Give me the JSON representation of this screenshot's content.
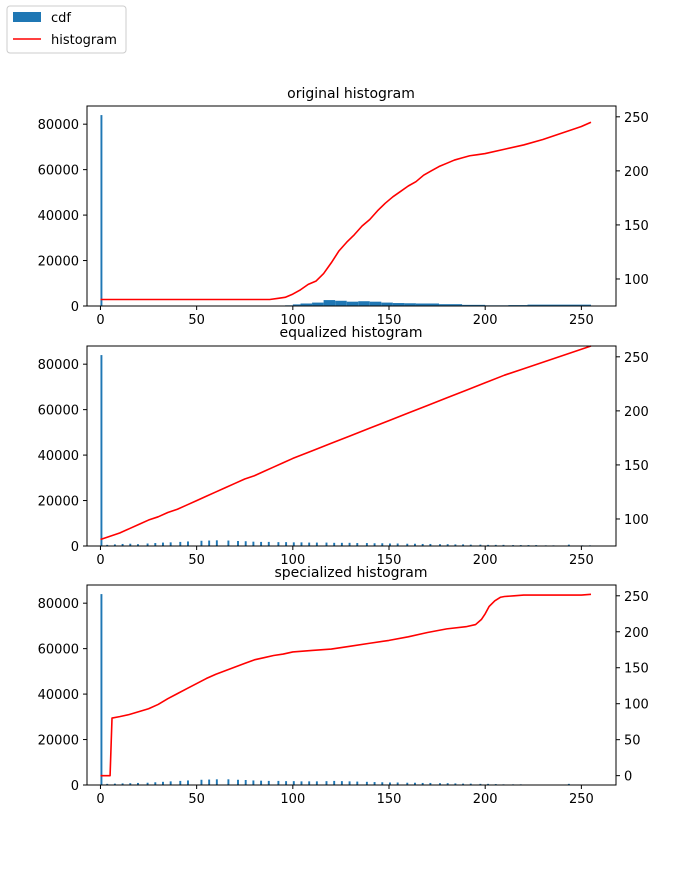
{
  "figure": {
    "legend": {
      "entries": [
        {
          "label": "cdf",
          "kind": "patch",
          "color": "#1f77b4"
        },
        {
          "label": "histogram",
          "kind": "line",
          "color": "#ff0000"
        }
      ],
      "placement": "upper-left-of-figure"
    }
  },
  "chart_data": [
    {
      "type": "bar",
      "title": "original histogram",
      "xlabel": "",
      "ylabel": "",
      "y2label": "",
      "xlim": [
        -7,
        268
      ],
      "xticks": [
        0,
        50,
        100,
        150,
        200,
        250
      ],
      "ylim": [
        0,
        88000
      ],
      "yticks": [
        0,
        20000,
        40000,
        60000,
        80000
      ],
      "y2lim": [
        75,
        260
      ],
      "y2ticks": [
        100,
        150,
        200,
        250
      ],
      "grid": false,
      "bar_color": "#1f77b4",
      "line_color": "#ff0000",
      "bars": [
        {
          "x0": 0,
          "x1": 1,
          "value": 84000
        },
        {
          "x0": 96,
          "x1": 100,
          "value": 300
        },
        {
          "x0": 100,
          "x1": 104,
          "value": 700
        },
        {
          "x0": 104,
          "x1": 110,
          "value": 1100
        },
        {
          "x0": 110,
          "x1": 116,
          "value": 1500
        },
        {
          "x0": 116,
          "x1": 122,
          "value": 2600
        },
        {
          "x0": 122,
          "x1": 128,
          "value": 2300
        },
        {
          "x0": 128,
          "x1": 134,
          "value": 1900
        },
        {
          "x0": 134,
          "x1": 140,
          "value": 2100
        },
        {
          "x0": 140,
          "x1": 146,
          "value": 1900
        },
        {
          "x0": 146,
          "x1": 152,
          "value": 1500
        },
        {
          "x0": 152,
          "x1": 158,
          "value": 1300
        },
        {
          "x0": 158,
          "x1": 164,
          "value": 1200
        },
        {
          "x0": 164,
          "x1": 176,
          "value": 1100
        },
        {
          "x0": 176,
          "x1": 188,
          "value": 800
        },
        {
          "x0": 188,
          "x1": 200,
          "value": 500
        },
        {
          "x0": 200,
          "x1": 212,
          "value": 300
        },
        {
          "x0": 212,
          "x1": 222,
          "value": 400
        },
        {
          "x0": 222,
          "x1": 255,
          "value": 600
        }
      ],
      "line": {
        "x": [
          0,
          88,
          92,
          96,
          100,
          104,
          108,
          112,
          116,
          120,
          124,
          128,
          132,
          136,
          140,
          144,
          148,
          152,
          156,
          160,
          164,
          168,
          172,
          176,
          180,
          184,
          188,
          192,
          196,
          200,
          210,
          220,
          230,
          240,
          250,
          255
        ],
        "y": [
          81,
          81,
          82,
          83,
          86,
          90,
          95,
          98,
          105,
          115,
          126,
          134,
          141,
          149,
          155,
          163,
          170,
          176,
          181,
          186,
          190,
          196,
          200,
          204,
          207,
          210,
          212,
          214,
          215,
          216,
          220,
          224,
          229,
          235,
          241,
          245
        ]
      }
    },
    {
      "type": "bar",
      "title": "equalized histogram",
      "xlabel": "",
      "ylabel": "",
      "y2label": "",
      "xlim": [
        -7,
        268
      ],
      "xticks": [
        0,
        50,
        100,
        150,
        200,
        250
      ],
      "ylim": [
        0,
        88000
      ],
      "yticks": [
        0,
        20000,
        40000,
        60000,
        80000
      ],
      "y2lim": [
        75,
        260
      ],
      "y2ticks": [
        100,
        150,
        200,
        250
      ],
      "grid": false,
      "bar_color": "#1f77b4",
      "line_color": "#ff0000",
      "bars": [
        {
          "x0": 0,
          "x1": 1,
          "value": 84000
        },
        {
          "x0": 3,
          "x1": 4,
          "value": 500
        },
        {
          "x0": 7,
          "x1": 8,
          "value": 700
        },
        {
          "x0": 11,
          "x1": 12,
          "value": 900
        },
        {
          "x0": 15,
          "x1": 16,
          "value": 1000
        },
        {
          "x0": 19,
          "x1": 20,
          "value": 800
        },
        {
          "x0": 24,
          "x1": 25,
          "value": 1100
        },
        {
          "x0": 28,
          "x1": 29,
          "value": 1300
        },
        {
          "x0": 32,
          "x1": 33,
          "value": 1500
        },
        {
          "x0": 36,
          "x1": 37,
          "value": 1600
        },
        {
          "x0": 41,
          "x1": 42,
          "value": 1800
        },
        {
          "x0": 45,
          "x1": 46,
          "value": 2000
        },
        {
          "x0": 52,
          "x1": 53,
          "value": 2300
        },
        {
          "x0": 56,
          "x1": 57,
          "value": 2400
        },
        {
          "x0": 60,
          "x1": 61,
          "value": 2500
        },
        {
          "x0": 66,
          "x1": 67,
          "value": 2400
        },
        {
          "x0": 71,
          "x1": 72,
          "value": 2200
        },
        {
          "x0": 75,
          "x1": 76,
          "value": 2100
        },
        {
          "x0": 79,
          "x1": 80,
          "value": 1900
        },
        {
          "x0": 83,
          "x1": 84,
          "value": 1800
        },
        {
          "x0": 87,
          "x1": 88,
          "value": 1800
        },
        {
          "x0": 92,
          "x1": 93,
          "value": 1700
        },
        {
          "x0": 96,
          "x1": 97,
          "value": 1700
        },
        {
          "x0": 100,
          "x1": 101,
          "value": 1600
        },
        {
          "x0": 104,
          "x1": 105,
          "value": 1600
        },
        {
          "x0": 108,
          "x1": 109,
          "value": 1500
        },
        {
          "x0": 112,
          "x1": 113,
          "value": 1500
        },
        {
          "x0": 117,
          "x1": 118,
          "value": 1500
        },
        {
          "x0": 121,
          "x1": 122,
          "value": 1400
        },
        {
          "x0": 125,
          "x1": 126,
          "value": 1400
        },
        {
          "x0": 129,
          "x1": 130,
          "value": 1400
        },
        {
          "x0": 133,
          "x1": 134,
          "value": 1300
        },
        {
          "x0": 138,
          "x1": 139,
          "value": 1300
        },
        {
          "x0": 142,
          "x1": 143,
          "value": 1200
        },
        {
          "x0": 146,
          "x1": 147,
          "value": 1200
        },
        {
          "x0": 150,
          "x1": 151,
          "value": 1100
        },
        {
          "x0": 154,
          "x1": 155,
          "value": 1100
        },
        {
          "x0": 159,
          "x1": 160,
          "value": 1000
        },
        {
          "x0": 163,
          "x1": 164,
          "value": 1000
        },
        {
          "x0": 167,
          "x1": 168,
          "value": 900
        },
        {
          "x0": 171,
          "x1": 172,
          "value": 900
        },
        {
          "x0": 176,
          "x1": 177,
          "value": 800
        },
        {
          "x0": 180,
          "x1": 181,
          "value": 800
        },
        {
          "x0": 184,
          "x1": 185,
          "value": 700
        },
        {
          "x0": 188,
          "x1": 189,
          "value": 700
        },
        {
          "x0": 192,
          "x1": 193,
          "value": 600
        },
        {
          "x0": 197,
          "x1": 198,
          "value": 600
        },
        {
          "x0": 201,
          "x1": 202,
          "value": 500
        },
        {
          "x0": 205,
          "x1": 206,
          "value": 500
        },
        {
          "x0": 209,
          "x1": 210,
          "value": 500
        },
        {
          "x0": 214,
          "x1": 215,
          "value": 400
        },
        {
          "x0": 218,
          "x1": 219,
          "value": 400
        },
        {
          "x0": 222,
          "x1": 223,
          "value": 400
        },
        {
          "x0": 226,
          "x1": 227,
          "value": 400
        },
        {
          "x0": 231,
          "x1": 232,
          "value": 300
        },
        {
          "x0": 235,
          "x1": 236,
          "value": 300
        },
        {
          "x0": 243,
          "x1": 244,
          "value": 600
        },
        {
          "x0": 250,
          "x1": 251,
          "value": 300
        },
        {
          "x0": 254,
          "x1": 255,
          "value": 300
        }
      ],
      "line": {
        "x": [
          0,
          5,
          10,
          15,
          20,
          25,
          30,
          35,
          40,
          45,
          50,
          55,
          60,
          65,
          70,
          75,
          80,
          85,
          90,
          95,
          100,
          110,
          120,
          130,
          140,
          150,
          160,
          170,
          180,
          190,
          200,
          210,
          220,
          230,
          240,
          250,
          255
        ],
        "y": [
          81,
          84,
          87,
          91,
          95,
          99,
          102,
          106,
          109,
          113,
          117,
          121,
          125,
          129,
          133,
          137,
          140,
          144,
          148,
          152,
          156,
          163,
          170,
          177,
          184,
          191,
          198,
          205,
          212,
          219,
          226,
          233,
          239,
          245,
          251,
          257,
          260
        ]
      }
    },
    {
      "type": "bar",
      "title": "specialized histogram",
      "xlabel": "",
      "ylabel": "",
      "y2label": "",
      "xlim": [
        -7,
        268
      ],
      "xticks": [
        0,
        50,
        100,
        150,
        200,
        250
      ],
      "ylim": [
        0,
        88000
      ],
      "yticks": [
        0,
        20000,
        40000,
        60000,
        80000
      ],
      "y2lim": [
        -13,
        265
      ],
      "y2ticks": [
        0,
        50,
        100,
        150,
        200,
        250
      ],
      "grid": false,
      "bar_color": "#1f77b4",
      "line_color": "#ff0000",
      "bars": [
        {
          "x0": 0,
          "x1": 1,
          "value": 84000
        },
        {
          "x0": 3,
          "x1": 4,
          "value": 500
        },
        {
          "x0": 7,
          "x1": 8,
          "value": 600
        },
        {
          "x0": 11,
          "x1": 12,
          "value": 700
        },
        {
          "x0": 15,
          "x1": 16,
          "value": 800
        },
        {
          "x0": 19,
          "x1": 20,
          "value": 900
        },
        {
          "x0": 24,
          "x1": 25,
          "value": 1000
        },
        {
          "x0": 28,
          "x1": 29,
          "value": 1200
        },
        {
          "x0": 32,
          "x1": 33,
          "value": 1400
        },
        {
          "x0": 36,
          "x1": 37,
          "value": 1600
        },
        {
          "x0": 41,
          "x1": 42,
          "value": 1800
        },
        {
          "x0": 45,
          "x1": 46,
          "value": 2000
        },
        {
          "x0": 52,
          "x1": 53,
          "value": 2300
        },
        {
          "x0": 56,
          "x1": 57,
          "value": 2400
        },
        {
          "x0": 60,
          "x1": 61,
          "value": 2500
        },
        {
          "x0": 66,
          "x1": 67,
          "value": 2500
        },
        {
          "x0": 71,
          "x1": 72,
          "value": 2300
        },
        {
          "x0": 75,
          "x1": 76,
          "value": 2200
        },
        {
          "x0": 79,
          "x1": 80,
          "value": 2000
        },
        {
          "x0": 83,
          "x1": 84,
          "value": 1900
        },
        {
          "x0": 87,
          "x1": 88,
          "value": 1800
        },
        {
          "x0": 92,
          "x1": 93,
          "value": 1800
        },
        {
          "x0": 96,
          "x1": 97,
          "value": 1700
        },
        {
          "x0": 100,
          "x1": 101,
          "value": 1700
        },
        {
          "x0": 104,
          "x1": 105,
          "value": 1600
        },
        {
          "x0": 108,
          "x1": 109,
          "value": 1600
        },
        {
          "x0": 112,
          "x1": 113,
          "value": 1600
        },
        {
          "x0": 117,
          "x1": 118,
          "value": 1700
        },
        {
          "x0": 121,
          "x1": 122,
          "value": 1800
        },
        {
          "x0": 125,
          "x1": 126,
          "value": 1700
        },
        {
          "x0": 129,
          "x1": 130,
          "value": 1600
        },
        {
          "x0": 133,
          "x1": 134,
          "value": 1500
        },
        {
          "x0": 138,
          "x1": 139,
          "value": 1400
        },
        {
          "x0": 142,
          "x1": 143,
          "value": 1300
        },
        {
          "x0": 146,
          "x1": 147,
          "value": 1200
        },
        {
          "x0": 150,
          "x1": 151,
          "value": 1100
        },
        {
          "x0": 154,
          "x1": 155,
          "value": 1100
        },
        {
          "x0": 159,
          "x1": 160,
          "value": 1000
        },
        {
          "x0": 163,
          "x1": 164,
          "value": 1000
        },
        {
          "x0": 167,
          "x1": 168,
          "value": 900
        },
        {
          "x0": 171,
          "x1": 172,
          "value": 900
        },
        {
          "x0": 176,
          "x1": 177,
          "value": 800
        },
        {
          "x0": 180,
          "x1": 181,
          "value": 800
        },
        {
          "x0": 184,
          "x1": 185,
          "value": 700
        },
        {
          "x0": 188,
          "x1": 189,
          "value": 600
        },
        {
          "x0": 192,
          "x1": 193,
          "value": 600
        },
        {
          "x0": 197,
          "x1": 198,
          "value": 500
        },
        {
          "x0": 201,
          "x1": 202,
          "value": 500
        },
        {
          "x0": 205,
          "x1": 206,
          "value": 400
        },
        {
          "x0": 209,
          "x1": 210,
          "value": 300
        },
        {
          "x0": 214,
          "x1": 215,
          "value": 300
        },
        {
          "x0": 218,
          "x1": 219,
          "value": 300
        },
        {
          "x0": 243,
          "x1": 244,
          "value": 500
        },
        {
          "x0": 250,
          "x1": 251,
          "value": 200
        }
      ],
      "line": {
        "x": [
          0,
          5,
          6,
          10,
          15,
          20,
          25,
          30,
          35,
          40,
          45,
          50,
          55,
          60,
          65,
          70,
          75,
          80,
          85,
          90,
          95,
          100,
          110,
          120,
          130,
          140,
          150,
          160,
          170,
          180,
          190,
          195,
          198,
          200,
          202,
          205,
          208,
          210,
          215,
          220,
          230,
          240,
          250,
          255
        ],
        "y": [
          0,
          0,
          80,
          82,
          85,
          89,
          93,
          99,
          107,
          114,
          121,
          128,
          135,
          141,
          146,
          151,
          156,
          161,
          164,
          167,
          169,
          172,
          174,
          176,
          180,
          184,
          188,
          193,
          199,
          204,
          207,
          210,
          217,
          225,
          235,
          243,
          248,
          249,
          250,
          251,
          251,
          251,
          251,
          252
        ]
      }
    }
  ]
}
